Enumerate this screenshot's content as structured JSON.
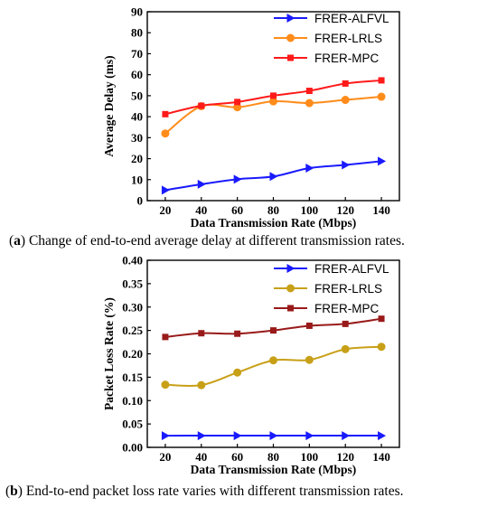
{
  "captions": [
    {
      "tag": "a",
      "text": "Change of end-to-end average delay at different transmission rates."
    },
    {
      "tag": "b",
      "text": "End-to-end packet loss rate varies with different transmission rates."
    }
  ],
  "chart_data": [
    {
      "type": "line",
      "title": "",
      "xlabel": "Data Transmission Rate (Mbps)",
      "ylabel": "Average Delay (ms)",
      "x": [
        20,
        40,
        60,
        80,
        100,
        120,
        140
      ],
      "xticks": [
        "20",
        "40",
        "60",
        "80",
        "100",
        "120",
        "140"
      ],
      "yticks": [
        "0",
        "10",
        "20",
        "30",
        "40",
        "50",
        "60",
        "70",
        "80",
        "90"
      ],
      "xlim": [
        10,
        150
      ],
      "ylim": [
        0,
        90
      ],
      "legend_position": "top-right",
      "series": [
        {
          "name": "FRER-ALFVL",
          "color": "#1a1aff",
          "marker": "triangle-right",
          "values": [
            5.0,
            7.8,
            10.2,
            11.5,
            15.5,
            17.0,
            18.8
          ]
        },
        {
          "name": "FRER-LRLS",
          "color": "#ff8c1a",
          "marker": "circle",
          "values": [
            32.0,
            45.0,
            44.5,
            47.3,
            46.5,
            48.0,
            49.5
          ]
        },
        {
          "name": "FRER-MPC",
          "color": "#ff1a1a",
          "marker": "square",
          "values": [
            41.2,
            45.2,
            47.0,
            50.0,
            52.3,
            55.8,
            57.3
          ]
        }
      ]
    },
    {
      "type": "line",
      "title": "",
      "xlabel": "Data Transmission Rate (Mbps)",
      "ylabel": "Packet Loss Rate (%)",
      "x": [
        20,
        40,
        60,
        80,
        100,
        120,
        140
      ],
      "xticks": [
        "20",
        "40",
        "60",
        "80",
        "100",
        "120",
        "140"
      ],
      "yticks": [
        "0.00",
        "0.05",
        "0.10",
        "0.15",
        "0.20",
        "0.25",
        "0.30",
        "0.35",
        "0.40"
      ],
      "xlim": [
        10,
        150
      ],
      "ylim": [
        0,
        0.4
      ],
      "legend_position": "top-right",
      "series": [
        {
          "name": "FRER-ALFVL",
          "color": "#1a1aff",
          "marker": "triangle-right",
          "values": [
            0.025,
            0.025,
            0.025,
            0.025,
            0.025,
            0.025,
            0.025
          ]
        },
        {
          "name": "FRER-LRLS",
          "color": "#c8a018",
          "marker": "circle",
          "values": [
            0.134,
            0.133,
            0.16,
            0.186,
            0.187,
            0.21,
            0.215
          ]
        },
        {
          "name": "FRER-MPC",
          "color": "#991a1a",
          "marker": "square",
          "values": [
            0.236,
            0.244,
            0.243,
            0.25,
            0.26,
            0.264,
            0.275
          ]
        }
      ]
    }
  ]
}
